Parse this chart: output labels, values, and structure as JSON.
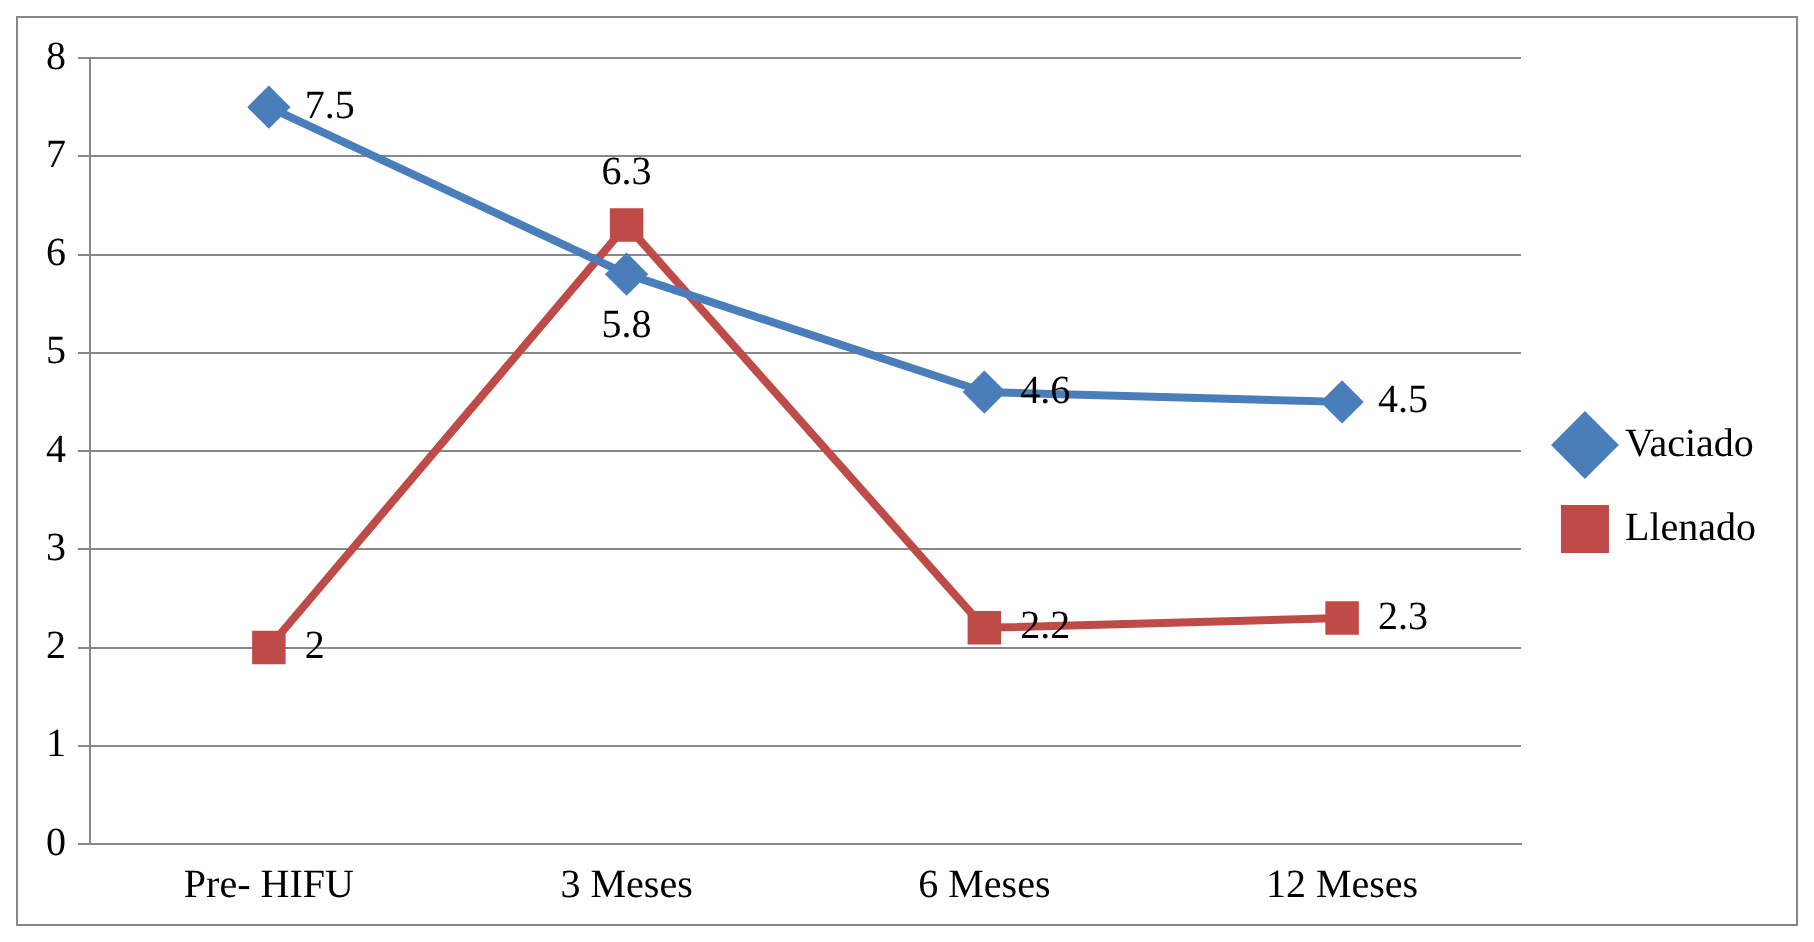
{
  "chart_data": {
    "type": "line",
    "categories": [
      "Pre- HIFU",
      "3 Meses",
      "6 Meses",
      "12 Meses"
    ],
    "series": [
      {
        "name": "Vaciado",
        "color": "#4a7ebb",
        "values": [
          7.5,
          5.8,
          4.6,
          4.5
        ],
        "marker": "diamond"
      },
      {
        "name": "Llenado",
        "color": "#be4b48",
        "values": [
          2,
          6.3,
          2.2,
          2.3
        ],
        "marker": "square"
      }
    ],
    "ylim": [
      0,
      8
    ],
    "yticks": [
      0,
      1,
      2,
      3,
      4,
      5,
      6,
      7,
      8
    ],
    "grid": "y",
    "legend": "right",
    "data_labels": true
  }
}
